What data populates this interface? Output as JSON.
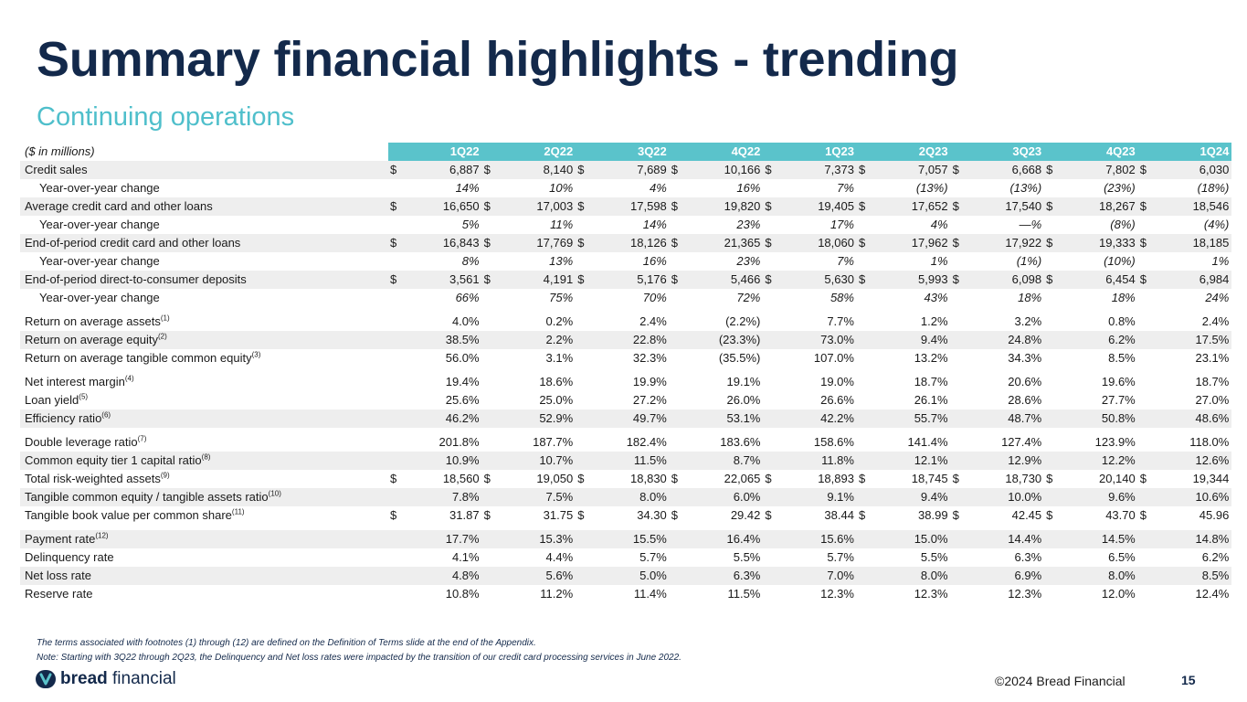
{
  "page": {
    "title": "Summary financial highlights - trending",
    "subtitle": "Continuing operations"
  },
  "table": {
    "unit_label": "($ in millions)",
    "periods": [
      "1Q22",
      "2Q22",
      "3Q22",
      "4Q22",
      "1Q23",
      "2Q23",
      "3Q23",
      "4Q23",
      "1Q24"
    ],
    "groups": [
      [
        {
          "label": "Credit sales",
          "sup": "",
          "dollar": true,
          "sub": false,
          "italic": false,
          "shade": true,
          "values": [
            "6,887",
            "8,140",
            "7,689",
            "10,166",
            "7,373",
            "7,057",
            "6,668",
            "7,802",
            "6,030"
          ]
        },
        {
          "label": "Year-over-year change",
          "sup": "",
          "dollar": false,
          "sub": true,
          "italic": true,
          "shade": false,
          "values": [
            "14%",
            "10%",
            "4%",
            "16%",
            "7%",
            "(13%)",
            "(13%)",
            "(23%)",
            "(18%)"
          ]
        },
        {
          "label": "Average credit card and other loans",
          "sup": "",
          "dollar": true,
          "sub": false,
          "italic": false,
          "shade": true,
          "values": [
            "16,650",
            "17,003",
            "17,598",
            "19,820",
            "19,405",
            "17,652",
            "17,540",
            "18,267",
            "18,546"
          ]
        },
        {
          "label": "Year-over-year change",
          "sup": "",
          "dollar": false,
          "sub": true,
          "italic": true,
          "shade": false,
          "values": [
            "5%",
            "11%",
            "14%",
            "23%",
            "17%",
            "4%",
            "—%",
            "(8%)",
            "(4%)"
          ]
        },
        {
          "label": "End-of-period credit card and other loans",
          "sup": "",
          "dollar": true,
          "sub": false,
          "italic": false,
          "shade": true,
          "values": [
            "16,843",
            "17,769",
            "18,126",
            "21,365",
            "18,060",
            "17,962",
            "17,922",
            "19,333",
            "18,185"
          ]
        },
        {
          "label": "Year-over-year change",
          "sup": "",
          "dollar": false,
          "sub": true,
          "italic": true,
          "shade": false,
          "values": [
            "8%",
            "13%",
            "16%",
            "23%",
            "7%",
            "1%",
            "(1%)",
            "(10%)",
            "1%"
          ]
        },
        {
          "label": "End-of-period direct-to-consumer deposits",
          "sup": "",
          "dollar": true,
          "sub": false,
          "italic": false,
          "shade": true,
          "values": [
            "3,561",
            "4,191",
            "5,176",
            "5,466",
            "5,630",
            "5,993",
            "6,098",
            "6,454",
            "6,984"
          ]
        },
        {
          "label": "Year-over-year change",
          "sup": "",
          "dollar": false,
          "sub": true,
          "italic": true,
          "shade": false,
          "values": [
            "66%",
            "75%",
            "70%",
            "72%",
            "58%",
            "43%",
            "18%",
            "18%",
            "24%"
          ]
        }
      ],
      [
        {
          "label": "Return on average assets",
          "sup": "(1)",
          "dollar": false,
          "sub": false,
          "italic": false,
          "shade": false,
          "values": [
            "4.0%",
            "0.2%",
            "2.4%",
            "(2.2%)",
            "7.7%",
            "1.2%",
            "3.2%",
            "0.8%",
            "2.4%"
          ]
        },
        {
          "label": "Return on average equity",
          "sup": "(2)",
          "dollar": false,
          "sub": false,
          "italic": false,
          "shade": true,
          "values": [
            "38.5%",
            "2.2%",
            "22.8%",
            "(23.3%)",
            "73.0%",
            "9.4%",
            "24.8%",
            "6.2%",
            "17.5%"
          ]
        },
        {
          "label": "Return on average tangible common equity",
          "sup": "(3)",
          "dollar": false,
          "sub": false,
          "italic": false,
          "shade": false,
          "values": [
            "56.0%",
            "3.1%",
            "32.3%",
            "(35.5%)",
            "107.0%",
            "13.2%",
            "34.3%",
            "8.5%",
            "23.1%"
          ]
        }
      ],
      [
        {
          "label": "Net interest margin",
          "sup": "(4)",
          "dollar": false,
          "sub": false,
          "italic": false,
          "shade": false,
          "values": [
            "19.4%",
            "18.6%",
            "19.9%",
            "19.1%",
            "19.0%",
            "18.7%",
            "20.6%",
            "19.6%",
            "18.7%"
          ]
        },
        {
          "label": "Loan yield",
          "sup": "(5)",
          "dollar": false,
          "sub": false,
          "italic": false,
          "shade": false,
          "values": [
            "25.6%",
            "25.0%",
            "27.2%",
            "26.0%",
            "26.6%",
            "26.1%",
            "28.6%",
            "27.7%",
            "27.0%"
          ]
        },
        {
          "label": "Efficiency ratio",
          "sup": "(6)",
          "dollar": false,
          "sub": false,
          "italic": false,
          "shade": true,
          "values": [
            "46.2%",
            "52.9%",
            "49.7%",
            "53.1%",
            "42.2%",
            "55.7%",
            "48.7%",
            "50.8%",
            "48.6%"
          ]
        }
      ],
      [
        {
          "label": "Double leverage ratio",
          "sup": "(7)",
          "dollar": false,
          "sub": false,
          "italic": false,
          "shade": false,
          "values": [
            "201.8%",
            "187.7%",
            "182.4%",
            "183.6%",
            "158.6%",
            "141.4%",
            "127.4%",
            "123.9%",
            "118.0%"
          ]
        },
        {
          "label": "Common equity tier 1 capital ratio",
          "sup": "(8)",
          "dollar": false,
          "sub": false,
          "italic": false,
          "shade": true,
          "values": [
            "10.9%",
            "10.7%",
            "11.5%",
            "8.7%",
            "11.8%",
            "12.1%",
            "12.9%",
            "12.2%",
            "12.6%"
          ]
        },
        {
          "label": "Total risk-weighted assets",
          "sup": "(9)",
          "dollar": true,
          "sub": false,
          "italic": false,
          "shade": false,
          "values": [
            "18,560",
            "19,050",
            "18,830",
            "22,065",
            "18,893",
            "18,745",
            "18,730",
            "20,140",
            "19,344"
          ]
        },
        {
          "label": "Tangible common equity / tangible assets ratio",
          "sup": "(10)",
          "dollar": false,
          "sub": false,
          "italic": false,
          "shade": true,
          "values": [
            "7.8%",
            "7.5%",
            "8.0%",
            "6.0%",
            "9.1%",
            "9.4%",
            "10.0%",
            "9.6%",
            "10.6%"
          ]
        },
        {
          "label": "Tangible book value per common share",
          "sup": "(11)",
          "dollar": true,
          "sub": false,
          "italic": false,
          "shade": false,
          "values": [
            "31.87",
            "31.75",
            "34.30",
            "29.42",
            "38.44",
            "38.99",
            "42.45",
            "43.70",
            "45.96"
          ]
        }
      ],
      [
        {
          "label": "Payment rate",
          "sup": "(12)",
          "dollar": false,
          "sub": false,
          "italic": false,
          "shade": true,
          "values": [
            "17.7%",
            "15.3%",
            "15.5%",
            "16.4%",
            "15.6%",
            "15.0%",
            "14.4%",
            "14.5%",
            "14.8%"
          ]
        },
        {
          "label": "Delinquency rate",
          "sup": "",
          "dollar": false,
          "sub": false,
          "italic": false,
          "shade": false,
          "values": [
            "4.1%",
            "4.4%",
            "5.7%",
            "5.5%",
            "5.7%",
            "5.5%",
            "6.3%",
            "6.5%",
            "6.2%"
          ]
        },
        {
          "label": "Net loss rate",
          "sup": "",
          "dollar": false,
          "sub": false,
          "italic": false,
          "shade": true,
          "values": [
            "4.8%",
            "5.6%",
            "5.0%",
            "6.3%",
            "7.0%",
            "8.0%",
            "6.9%",
            "8.0%",
            "8.5%"
          ]
        },
        {
          "label": "Reserve rate",
          "sup": "",
          "dollar": false,
          "sub": false,
          "italic": false,
          "shade": false,
          "values": [
            "10.8%",
            "11.2%",
            "11.4%",
            "11.5%",
            "12.3%",
            "12.3%",
            "12.3%",
            "12.0%",
            "12.4%"
          ]
        }
      ]
    ]
  },
  "footnotes": {
    "terms": "The terms associated with footnotes (1) through (12) are defined on the Definition of Terms slide at the end of the Appendix.",
    "note": "Note: Starting with 3Q22 through 2Q23, the Delinquency and Net loss rates were impacted by the transition of our credit card processing services in June 2022."
  },
  "footer": {
    "logo_bold": "bread",
    "logo_light": " financial",
    "logo_mark_icon": "bread-logo-icon",
    "copyright": "©2024 Bread Financial",
    "page_number": "15",
    "brand_color": "#13294b",
    "accent_color": "#5ac3cb"
  }
}
